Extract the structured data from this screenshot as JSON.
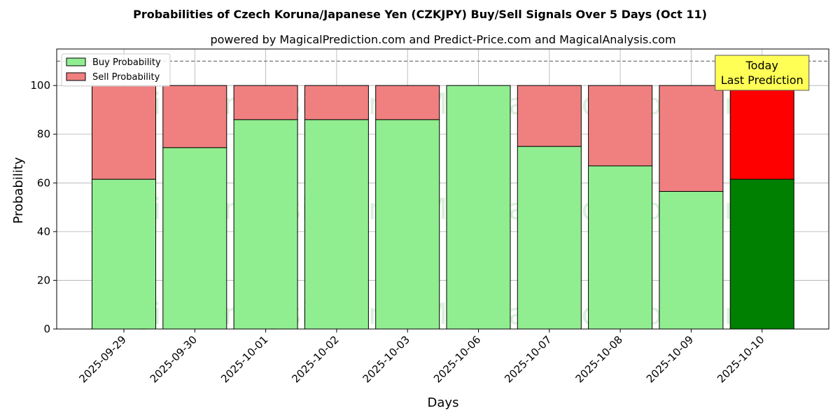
{
  "chart_data": {
    "type": "bar",
    "stacked": true,
    "title": "Probabilities of Czech Koruna/Japanese Yen (CZKJPY) Buy/Sell Signals Over 5 Days (Oct 11)",
    "subtitle": "powered by MagicalPrediction.com and Predict-Price.com and MagicalAnalysis.com",
    "xlabel": "Days",
    "ylabel": "Probability",
    "ylim": [
      0,
      115
    ],
    "yticks": [
      0,
      20,
      40,
      60,
      80,
      100
    ],
    "grid": true,
    "legend_position": "top-left",
    "reference_line": 110,
    "categories": [
      "2025-09-29",
      "2025-09-30",
      "2025-10-01",
      "2025-10-02",
      "2025-10-03",
      "2025-10-06",
      "2025-10-07",
      "2025-10-08",
      "2025-10-09",
      "2025-10-10"
    ],
    "series": [
      {
        "name": "Buy Probability",
        "color": "#90ee90",
        "highlight_color": "#008000",
        "values": [
          61.5,
          74.5,
          86,
          86,
          86,
          100,
          75,
          67,
          56.5,
          61.5
        ]
      },
      {
        "name": "Sell Probability",
        "color": "#f08080",
        "highlight_color": "#ff0000",
        "values": [
          38.5,
          25.5,
          14,
          14,
          14,
          0,
          25,
          33,
          43.5,
          38.5
        ]
      }
    ],
    "highlight_index": 9,
    "annotation": {
      "line1": "Today",
      "line2": "Last Prediction",
      "color": "#ffff55"
    },
    "watermarks": [
      "MagicalAnalysis.com",
      "MagicalPrediction.com"
    ]
  }
}
